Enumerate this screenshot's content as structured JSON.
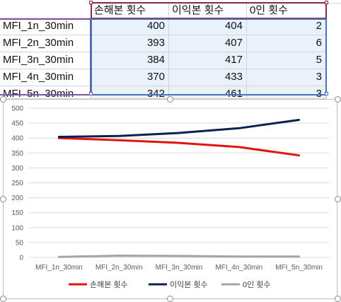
{
  "sheet": {
    "headers": [
      "손해본 횟수",
      "이익본 횟수",
      "0인 횟수"
    ],
    "rows": [
      {
        "name": "MFI_1n_30min",
        "loss": "400",
        "profit": "404",
        "zero": "2"
      },
      {
        "name": "MFI_2n_30min",
        "loss": "393",
        "profit": "407",
        "zero": "6"
      },
      {
        "name": "MFI_3n_30min",
        "loss": "384",
        "profit": "417",
        "zero": "5"
      },
      {
        "name": "MFI_4n_30min",
        "loss": "370",
        "profit": "433",
        "zero": "3"
      },
      {
        "name": "MFI_5n_30min",
        "loss": "342",
        "profit": "461",
        "zero": "3"
      }
    ]
  },
  "chart_data": {
    "type": "line",
    "categories": [
      "MFI_1n_30min",
      "MFI_2n_30min",
      "MFI_3n_30min",
      "MFI_4n_30min",
      "MFI_5n_30min"
    ],
    "series": [
      {
        "name": "손해본 횟수",
        "values": [
          400,
          393,
          384,
          370,
          342
        ],
        "color": "#e3140f"
      },
      {
        "name": "이익본 횟수",
        "values": [
          404,
          407,
          417,
          433,
          461
        ],
        "color": "#0d1f4f"
      },
      {
        "name": "0인 횟수",
        "values": [
          2,
          6,
          5,
          3,
          3
        ],
        "color": "#a5a5a5"
      }
    ],
    "y_ticks": [
      "0",
      "50",
      "100",
      "150",
      "200",
      "250",
      "300",
      "350",
      "400",
      "450",
      "500"
    ],
    "ylim": [
      0,
      500
    ],
    "grid": true,
    "legend_position": "bottom"
  }
}
